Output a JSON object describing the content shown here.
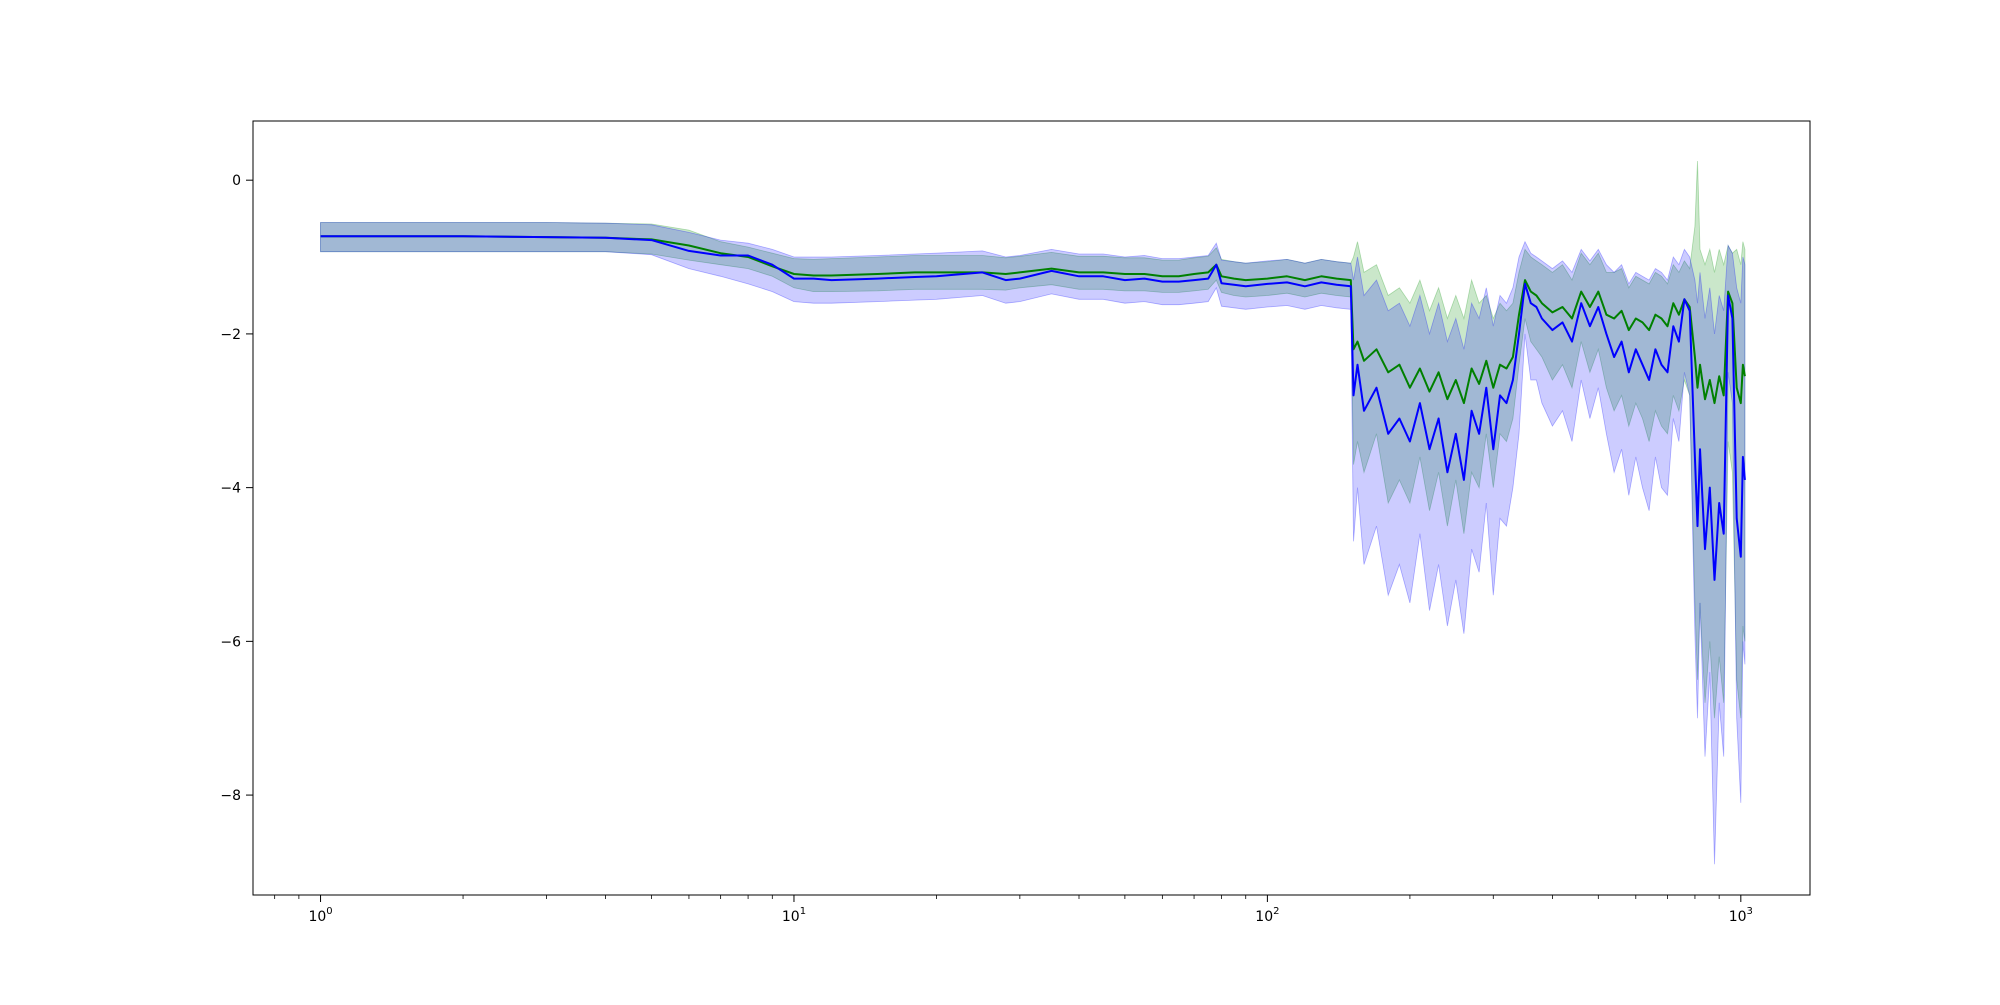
{
  "chart_data": {
    "type": "line",
    "title": "",
    "xlabel": "",
    "ylabel": "",
    "xscale": "log",
    "xlim": [
      0.72,
      1400
    ],
    "ylim": [
      -9.3,
      0.77
    ],
    "grid": false,
    "legend": "none",
    "x_ticks": [
      {
        "base": "10",
        "exp": "0",
        "value": 1
      },
      {
        "base": "10",
        "exp": "1",
        "value": 10
      },
      {
        "base": "10",
        "exp": "2",
        "value": 100
      },
      {
        "base": "10",
        "exp": "3",
        "value": 1000
      }
    ],
    "y_ticks": [
      {
        "label": "0",
        "value": 0
      },
      {
        "label": "−2",
        "value": -2
      },
      {
        "label": "−4",
        "value": -4
      },
      {
        "label": "−6",
        "value": -6
      },
      {
        "label": "−8",
        "value": -8
      }
    ],
    "series": [
      {
        "color": "#008000",
        "band_color": "#2ca02c",
        "band_opacity": 0.25,
        "x": [
          1,
          2,
          3,
          4,
          5,
          6,
          7,
          8,
          9,
          10,
          11,
          12,
          15,
          18,
          20,
          25,
          28,
          30,
          35,
          40,
          45,
          50,
          55,
          60,
          65,
          70,
          75,
          78,
          80,
          85,
          90,
          100,
          110,
          120,
          130,
          140,
          150,
          152,
          155,
          160,
          170,
          180,
          190,
          200,
          210,
          220,
          230,
          240,
          250,
          260,
          270,
          280,
          290,
          300,
          310,
          320,
          330,
          340,
          350,
          360,
          370,
          380,
          400,
          420,
          440,
          460,
          480,
          500,
          520,
          540,
          560,
          580,
          600,
          620,
          640,
          660,
          680,
          700,
          720,
          740,
          760,
          780,
          800,
          810,
          820,
          840,
          860,
          880,
          900,
          920,
          940,
          960,
          980,
          1000,
          1010,
          1020
        ],
        "y": [
          -0.73,
          -0.73,
          -0.74,
          -0.75,
          -0.77,
          -0.85,
          -0.95,
          -1.0,
          -1.12,
          -1.22,
          -1.24,
          -1.24,
          -1.22,
          -1.2,
          -1.2,
          -1.2,
          -1.22,
          -1.2,
          -1.15,
          -1.2,
          -1.2,
          -1.22,
          -1.22,
          -1.25,
          -1.25,
          -1.22,
          -1.2,
          -1.1,
          -1.25,
          -1.28,
          -1.3,
          -1.28,
          -1.25,
          -1.3,
          -1.25,
          -1.28,
          -1.3,
          -2.2,
          -2.1,
          -2.35,
          -2.2,
          -2.5,
          -2.4,
          -2.7,
          -2.45,
          -2.75,
          -2.5,
          -2.85,
          -2.6,
          -2.9,
          -2.45,
          -2.65,
          -2.35,
          -2.7,
          -2.4,
          -2.45,
          -2.3,
          -1.75,
          -1.3,
          -1.45,
          -1.5,
          -1.6,
          -1.72,
          -1.65,
          -1.8,
          -1.45,
          -1.65,
          -1.45,
          -1.75,
          -1.8,
          -1.7,
          -1.95,
          -1.8,
          -1.85,
          -1.95,
          -1.75,
          -1.8,
          -1.9,
          -1.6,
          -1.75,
          -1.55,
          -1.65,
          -2.3,
          -2.7,
          -2.4,
          -2.85,
          -2.6,
          -2.9,
          -2.55,
          -2.8,
          -1.45,
          -1.6,
          -2.7,
          -2.9,
          -2.4,
          -2.55
        ],
        "lower": [
          -0.93,
          -0.93,
          -0.93,
          -0.93,
          -0.96,
          -1.04,
          -1.1,
          -1.15,
          -1.25,
          -1.4,
          -1.45,
          -1.45,
          -1.44,
          -1.42,
          -1.42,
          -1.42,
          -1.43,
          -1.4,
          -1.36,
          -1.42,
          -1.42,
          -1.44,
          -1.44,
          -1.46,
          -1.46,
          -1.44,
          -1.42,
          -1.3,
          -1.46,
          -1.5,
          -1.52,
          -1.5,
          -1.47,
          -1.52,
          -1.47,
          -1.5,
          -1.52,
          -3.7,
          -3.4,
          -3.8,
          -3.3,
          -4.2,
          -3.9,
          -4.2,
          -3.6,
          -4.3,
          -3.8,
          -4.5,
          -3.9,
          -4.6,
          -3.8,
          -4.0,
          -3.3,
          -4.0,
          -3.3,
          -3.4,
          -3.1,
          -2.4,
          -1.8,
          -2.1,
          -2.2,
          -2.3,
          -2.6,
          -2.4,
          -2.7,
          -2.1,
          -2.5,
          -2.2,
          -2.7,
          -3.0,
          -2.8,
          -3.2,
          -2.9,
          -3.1,
          -3.4,
          -3.0,
          -3.2,
          -3.3,
          -2.8,
          -3.0,
          -2.6,
          -2.8,
          -5.5,
          -6.5,
          -5.5,
          -6.8,
          -6.0,
          -7.0,
          -6.2,
          -6.8,
          -3.4,
          -3.8,
          -6.5,
          -7.0,
          -5.8,
          -6.0
        ],
        "upper": [
          -0.55,
          -0.55,
          -0.55,
          -0.56,
          -0.57,
          -0.65,
          -0.8,
          -0.87,
          -0.95,
          -1.02,
          -1.03,
          -1.02,
          -1.0,
          -0.98,
          -0.98,
          -0.98,
          -1.01,
          -0.99,
          -0.94,
          -0.99,
          -0.99,
          -1.01,
          -1.01,
          -1.04,
          -1.04,
          -1.01,
          -0.99,
          -0.88,
          -1.03,
          -1.06,
          -1.08,
          -1.06,
          -1.03,
          -1.08,
          -1.03,
          -1.06,
          -1.08,
          -1.0,
          -0.8,
          -1.2,
          -1.1,
          -1.5,
          -1.4,
          -1.6,
          -1.3,
          -1.7,
          -1.4,
          -1.8,
          -1.5,
          -1.8,
          -1.3,
          -1.6,
          -1.5,
          -1.8,
          -1.6,
          -1.7,
          -1.6,
          -1.2,
          -0.9,
          -1.0,
          -1.05,
          -1.1,
          -1.2,
          -1.1,
          -1.3,
          -0.95,
          -1.1,
          -0.95,
          -1.2,
          -1.2,
          -1.15,
          -1.4,
          -1.25,
          -1.3,
          -1.35,
          -1.2,
          -1.25,
          -1.35,
          -1.1,
          -1.2,
          -1.05,
          -1.15,
          -0.6,
          0.25,
          -0.9,
          -1.1,
          -0.9,
          -1.2,
          -0.9,
          -1.1,
          -0.85,
          -0.95,
          -0.9,
          -1.1,
          -0.8,
          -0.9
        ]
      },
      {
        "color": "#0000ff",
        "band_color": "#0000ff",
        "band_opacity": 0.2,
        "x": [
          1,
          2,
          3,
          4,
          5,
          6,
          7,
          8,
          9,
          10,
          11,
          12,
          15,
          18,
          20,
          25,
          28,
          30,
          35,
          40,
          45,
          50,
          55,
          60,
          65,
          70,
          75,
          78,
          80,
          85,
          90,
          100,
          110,
          120,
          130,
          140,
          150,
          152,
          155,
          160,
          170,
          180,
          190,
          200,
          210,
          220,
          230,
          240,
          250,
          260,
          270,
          280,
          290,
          300,
          310,
          320,
          330,
          340,
          350,
          360,
          370,
          380,
          400,
          420,
          440,
          460,
          480,
          500,
          520,
          540,
          560,
          580,
          600,
          620,
          640,
          660,
          680,
          700,
          720,
          740,
          760,
          780,
          800,
          810,
          820,
          840,
          860,
          880,
          900,
          920,
          940,
          960,
          980,
          1000,
          1010,
          1020
        ],
        "y": [
          -0.73,
          -0.73,
          -0.74,
          -0.75,
          -0.78,
          -0.92,
          -0.98,
          -0.98,
          -1.1,
          -1.28,
          -1.28,
          -1.3,
          -1.28,
          -1.26,
          -1.25,
          -1.2,
          -1.3,
          -1.28,
          -1.18,
          -1.25,
          -1.25,
          -1.3,
          -1.28,
          -1.32,
          -1.32,
          -1.3,
          -1.28,
          -1.1,
          -1.34,
          -1.36,
          -1.38,
          -1.35,
          -1.33,
          -1.38,
          -1.33,
          -1.36,
          -1.38,
          -2.8,
          -2.4,
          -3.0,
          -2.7,
          -3.3,
          -3.1,
          -3.4,
          -2.9,
          -3.5,
          -3.1,
          -3.8,
          -3.3,
          -3.9,
          -3.0,
          -3.3,
          -2.7,
          -3.5,
          -2.8,
          -2.9,
          -2.6,
          -2.0,
          -1.35,
          -1.6,
          -1.65,
          -1.8,
          -1.95,
          -1.85,
          -2.1,
          -1.6,
          -1.9,
          -1.65,
          -2.0,
          -2.3,
          -2.1,
          -2.5,
          -2.2,
          -2.4,
          -2.6,
          -2.2,
          -2.4,
          -2.5,
          -1.9,
          -2.1,
          -1.55,
          -1.7,
          -3.6,
          -4.5,
          -3.5,
          -4.8,
          -4.0,
          -5.2,
          -4.2,
          -4.6,
          -1.5,
          -1.8,
          -4.4,
          -4.9,
          -3.6,
          -3.9
        ],
        "lower": [
          -0.93,
          -0.93,
          -0.93,
          -0.93,
          -0.97,
          -1.15,
          -1.25,
          -1.35,
          -1.45,
          -1.58,
          -1.6,
          -1.6,
          -1.58,
          -1.56,
          -1.55,
          -1.5,
          -1.6,
          -1.58,
          -1.48,
          -1.55,
          -1.55,
          -1.6,
          -1.58,
          -1.62,
          -1.62,
          -1.6,
          -1.58,
          -1.4,
          -1.64,
          -1.66,
          -1.68,
          -1.65,
          -1.63,
          -1.68,
          -1.63,
          -1.66,
          -1.68,
          -4.7,
          -4.0,
          -5.0,
          -4.5,
          -5.4,
          -5.0,
          -5.5,
          -4.6,
          -5.6,
          -5.0,
          -5.8,
          -5.2,
          -5.9,
          -4.8,
          -5.1,
          -4.2,
          -5.4,
          -4.4,
          -4.5,
          -4.0,
          -3.3,
          -2.0,
          -2.6,
          -2.6,
          -2.9,
          -3.2,
          -3.0,
          -3.4,
          -2.6,
          -3.1,
          -2.7,
          -3.3,
          -3.8,
          -3.5,
          -4.1,
          -3.6,
          -4.0,
          -4.3,
          -3.6,
          -4.0,
          -4.1,
          -3.1,
          -3.4,
          -2.5,
          -2.8,
          -5.9,
          -7.0,
          -5.5,
          -7.5,
          -6.4,
          -8.9,
          -6.8,
          -7.5,
          -2.5,
          -2.9,
          -7.0,
          -8.1,
          -6.0,
          -6.3
        ],
        "upper": [
          -0.55,
          -0.55,
          -0.55,
          -0.56,
          -0.58,
          -0.68,
          -0.78,
          -0.82,
          -0.9,
          -1.0,
          -1.0,
          -1.0,
          -0.98,
          -0.96,
          -0.95,
          -0.92,
          -1.0,
          -0.98,
          -0.9,
          -0.96,
          -0.96,
          -1.0,
          -0.98,
          -1.02,
          -1.02,
          -1.0,
          -0.98,
          -0.82,
          -1.04,
          -1.06,
          -1.08,
          -1.05,
          -1.03,
          -1.08,
          -1.03,
          -1.06,
          -1.08,
          -1.3,
          -1.0,
          -1.5,
          -1.3,
          -1.7,
          -1.6,
          -1.9,
          -1.5,
          -2.0,
          -1.6,
          -2.1,
          -1.8,
          -2.2,
          -1.6,
          -1.8,
          -1.4,
          -1.9,
          -1.5,
          -1.6,
          -1.4,
          -1.0,
          -0.8,
          -0.95,
          -1.0,
          -1.05,
          -1.15,
          -1.05,
          -1.2,
          -0.9,
          -1.05,
          -0.9,
          -1.1,
          -1.2,
          -1.1,
          -1.35,
          -1.2,
          -1.25,
          -1.3,
          -1.15,
          -1.2,
          -1.3,
          -1.0,
          -1.1,
          -0.9,
          -1.0,
          -1.3,
          -1.6,
          -1.2,
          -1.8,
          -1.4,
          -2.0,
          -1.5,
          -1.7,
          -0.85,
          -0.95,
          -1.4,
          -1.6,
          -1.0,
          -1.1
        ]
      }
    ]
  }
}
